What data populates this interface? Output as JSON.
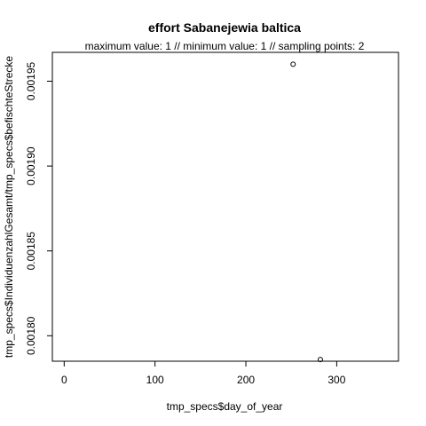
{
  "chart_data": {
    "type": "scatter",
    "title": "effort Sabanejewia baltica",
    "subtitle": "maximum value: 1  //  minimum value: 1  // sampling points: 2",
    "xlabel": "tmp_specs$day_of_year",
    "ylabel": "tmp_specs$IndividuenzahlGesamt/tmp_specs$befischteStrecke",
    "xlim": [
      -13,
      368
    ],
    "ylim": [
      0.001785,
      0.001967
    ],
    "x_ticks": [
      0,
      100,
      200,
      300
    ],
    "x_tick_labels": [
      "0",
      "100",
      "200",
      "300"
    ],
    "y_ticks": [
      0.0018,
      0.00185,
      0.0019,
      0.00195
    ],
    "y_tick_labels": [
      "0.00180",
      "0.00185",
      "0.00190",
      "0.00195"
    ],
    "grid": false,
    "marker": "open-circle",
    "points": [
      {
        "x": 252,
        "y": 0.00196
      },
      {
        "x": 282,
        "y": 0.001786
      }
    ]
  }
}
